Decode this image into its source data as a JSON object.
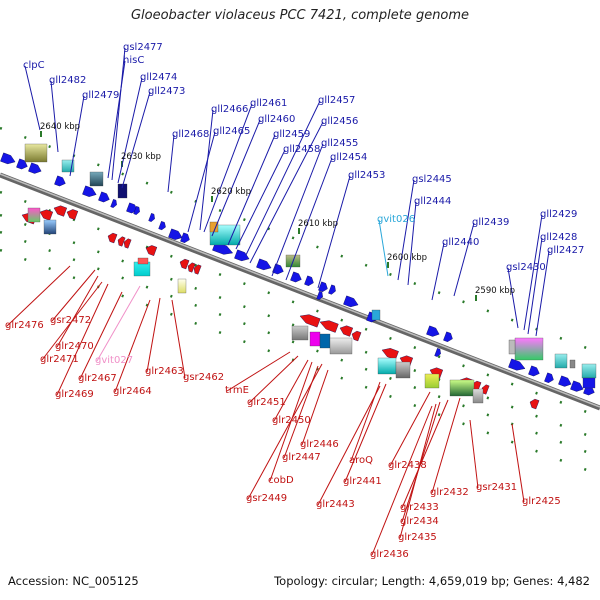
{
  "title": "Gloeobacter violaceus PCC 7421, complete genome",
  "footer": {
    "accession": "Accession: NC_005125",
    "summary": "Topology: circular; Length: 4,659,019 bp; Genes: 4,482"
  },
  "colors": {
    "forward": "#1515e6",
    "reverse": "#e81212",
    "forward_label": "#1a1aa8",
    "reverse_label": "#c01212",
    "rna_forward": "#2aa7d9",
    "rna_reverse": "#f090c8",
    "backbone": "#888888",
    "tick": "#2a7a2a"
  },
  "scale_labels": [
    "2640 kbp",
    "2630 kbp",
    "2620 kbp",
    "2610 kbp",
    "2600 kbp",
    "2590 kbp"
  ],
  "forward_genes": [
    "clpC",
    "gsl2477",
    "hisC",
    "gll2474",
    "gll2482",
    "gll2479",
    "gll2473",
    "gll2466",
    "gll2461",
    "gll2457",
    "gll2460",
    "gll2456",
    "gll2468",
    "gll2465",
    "gll2459",
    "gll2455",
    "gll2458",
    "gll2454",
    "gll2453",
    "gsl2445",
    "gvit026",
    "gll2444",
    "gll2439",
    "gll2440",
    "gll2429",
    "gll2428",
    "gll2427",
    "gsl2430"
  ],
  "reverse_genes": [
    "glr2476",
    "gsr2472",
    "glr2470",
    "glr2471",
    "glr2467",
    "gvit027",
    "glr2469",
    "glr2463",
    "glr2464",
    "gsr2462",
    "trmE",
    "glr2451",
    "glr2450",
    "glr2447",
    "glr2446",
    "cobD",
    "gsr2449",
    "aroQ",
    "glr2441",
    "glr2443",
    "glr2438",
    "glr2432",
    "glr2433",
    "glr2434",
    "glr2435",
    "glr2436",
    "gsr2431",
    "glr2425"
  ]
}
